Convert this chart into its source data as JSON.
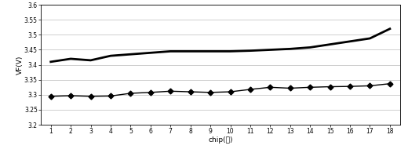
{
  "chip_x": [
    1,
    2,
    3,
    4,
    5,
    6,
    7,
    8,
    9,
    10,
    11,
    12,
    13,
    14,
    15,
    16,
    17,
    18
  ],
  "line1_y": [
    3.41,
    3.42,
    3.415,
    3.43,
    3.435,
    3.44,
    3.445,
    3.445,
    3.445,
    3.445,
    3.447,
    3.45,
    3.453,
    3.458,
    3.468,
    3.478,
    3.488,
    3.52
  ],
  "line2_y": [
    3.295,
    3.297,
    3.295,
    3.296,
    3.305,
    3.308,
    3.312,
    3.31,
    3.308,
    3.31,
    3.318,
    3.325,
    3.322,
    3.325,
    3.327,
    3.328,
    3.33,
    3.337
  ],
  "line1_color": "#000000",
  "line2_color": "#000000",
  "marker2": "D",
  "ylabel": "VF(V)",
  "xlabel": "chip(片)",
  "ylim": [
    3.2,
    3.6
  ],
  "ytick_vals": [
    3.2,
    3.25,
    3.3,
    3.35,
    3.4,
    3.45,
    3.5,
    3.55,
    3.6
  ],
  "ytick_labels": [
    "3.2",
    "3.25",
    "3.3",
    "3.35",
    "3.4",
    "3.45",
    "3.5",
    "3.55",
    "3.6"
  ],
  "xticks": [
    1,
    2,
    3,
    4,
    5,
    6,
    7,
    8,
    9,
    10,
    11,
    12,
    13,
    14,
    15,
    16,
    17,
    18
  ],
  "grid_color": "#bbbbbb",
  "bg_color": "#ffffff"
}
